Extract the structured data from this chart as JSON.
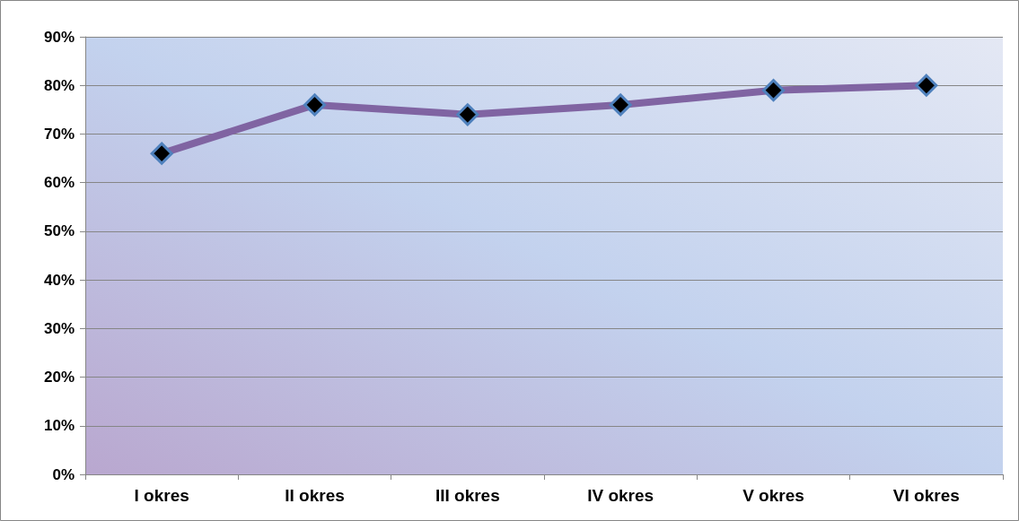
{
  "chart_data": {
    "type": "line",
    "categories": [
      "I okres",
      "II okres",
      "III okres",
      "IV okres",
      "V okres",
      "VI okres"
    ],
    "series": [
      {
        "color": "#8064a2",
        "values": [
          66,
          76,
          74,
          76,
          79,
          80
        ]
      }
    ],
    "ylim": [
      0,
      90
    ],
    "yticks": [
      {
        "value": 0,
        "label": "0%"
      },
      {
        "value": 10,
        "label": "10%"
      },
      {
        "value": 20,
        "label": "20%"
      },
      {
        "value": 30,
        "label": "30%"
      },
      {
        "value": 40,
        "label": "40%"
      },
      {
        "value": 50,
        "label": "50%"
      },
      {
        "value": 60,
        "label": "60%"
      },
      {
        "value": 70,
        "label": "70%"
      },
      {
        "value": 80,
        "label": "80%"
      },
      {
        "value": 90,
        "label": "90%"
      }
    ],
    "grid": "y",
    "marker": "diamond",
    "line_style": "solid"
  }
}
